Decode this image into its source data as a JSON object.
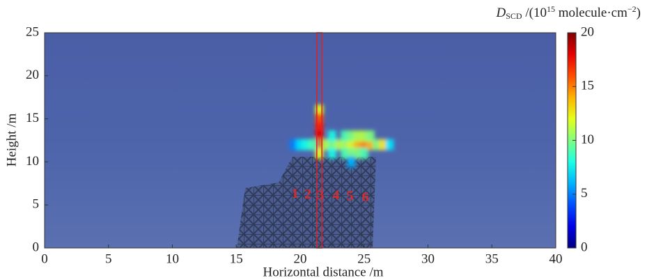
{
  "chart_data": {
    "type": "heatmap",
    "xlabel": "Horizontal distance /m",
    "ylabel": "Height /m",
    "colorbar_label": {
      "symbol": "D",
      "subscript": "SCD",
      "text": " /(10",
      "exp": "15",
      "text2": " molecule·cm",
      "exp2": "−2",
      "end": ")"
    },
    "xlim": [
      0,
      40
    ],
    "xticks": [
      0,
      5,
      10,
      15,
      20,
      25,
      30,
      35,
      40
    ],
    "ylim": [
      0,
      25
    ],
    "yticks": [
      0,
      5,
      10,
      15,
      20,
      25
    ],
    "clim": [
      0,
      20
    ],
    "cticks": [
      0,
      5,
      10,
      15,
      20
    ],
    "colormap": "jet",
    "x": [
      21.5,
      21.5,
      21.5,
      21.5,
      21.5,
      21.5,
      19.5,
      20,
      20.5,
      21,
      22,
      22.5,
      23,
      23.5,
      24,
      24.5,
      25,
      25.5,
      26,
      26.5,
      27,
      22.5,
      23.5,
      24,
      24.5,
      25,
      25.5,
      22.5,
      23.5,
      24,
      24.5,
      25,
      24
    ],
    "y": [
      16,
      15,
      14,
      13,
      12,
      11,
      12,
      12,
      12,
      12,
      12,
      12,
      12,
      12,
      12,
      12,
      12,
      12,
      12,
      12,
      12,
      13,
      13,
      13,
      13,
      13,
      13,
      11,
      11,
      11,
      11,
      11,
      10
    ],
    "values": [
      12,
      16,
      17,
      18,
      18,
      12,
      5,
      7,
      8,
      9,
      11,
      10,
      11,
      11,
      12,
      14,
      15,
      14,
      10,
      13,
      7,
      8,
      9,
      10,
      11,
      11,
      10,
      8,
      9,
      10,
      10,
      9,
      6
    ],
    "highlight_x": [
      21.3,
      21.7
    ],
    "highlight_color": "#e02020",
    "annotations": [
      {
        "text": "1",
        "x": 19.6,
        "y": 6.2
      },
      {
        "text": "2",
        "x": 20.6,
        "y": 6.1
      },
      {
        "text": "3",
        "x": 21.6,
        "y": 6.0
      },
      {
        "text": "4",
        "x": 22.8,
        "y": 6.0
      },
      {
        "text": "5",
        "x": 23.9,
        "y": 5.9
      },
      {
        "text": "6",
        "x": 25.1,
        "y": 5.8
      }
    ],
    "annotation_color": "#d82a2a"
  }
}
